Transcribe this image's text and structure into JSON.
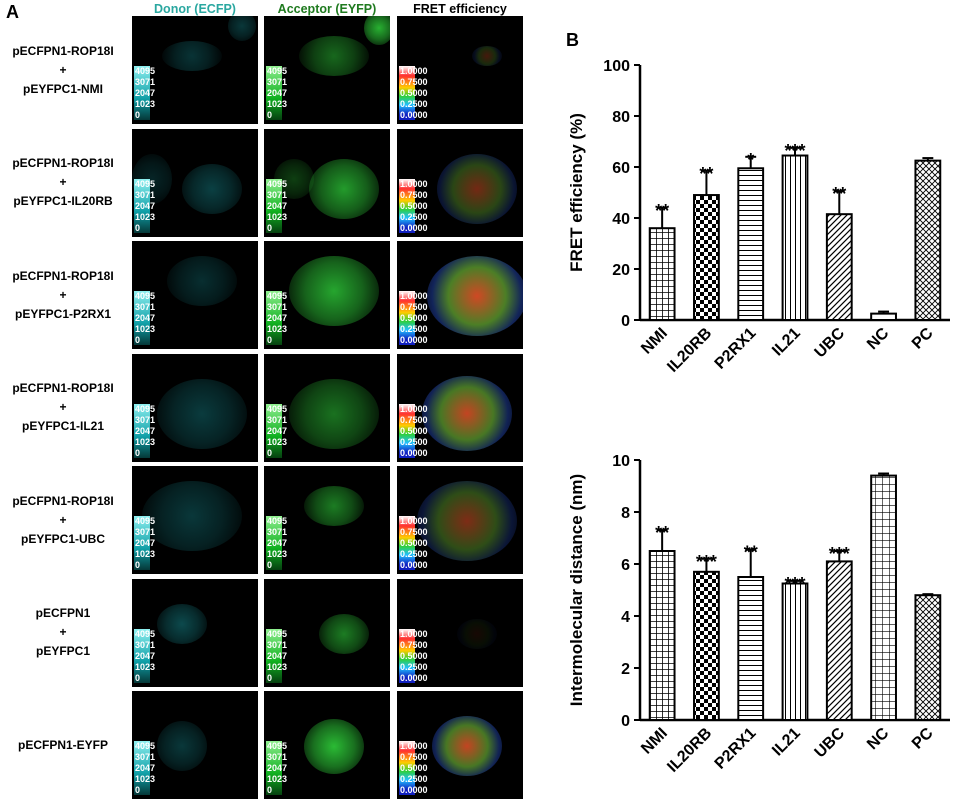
{
  "panel_a_letter": "A",
  "panel_b_letter": "B",
  "columns": [
    "Donor (ECFP)",
    "Acceptor (EYFP)",
    "FRET efficiency"
  ],
  "column_colors": [
    "#2aa7a0",
    "#1f7a1f",
    "#000000"
  ],
  "rows": [
    {
      "lines": [
        "pECFPN1-ROP18I",
        "+",
        "pEYFPC1-NMI"
      ]
    },
    {
      "lines": [
        "pECFPN1-ROP18I",
        "+",
        "pEYFPC1-IL20RB"
      ]
    },
    {
      "lines": [
        "pECFPN1-ROP18I",
        "+",
        "pEYFPC1-P2RX1"
      ]
    },
    {
      "lines": [
        "pECFPN1-ROP18I",
        "+",
        "pEYFPC1-IL21"
      ]
    },
    {
      "lines": [
        "pECFPN1-ROP18I",
        "+",
        "pEYFPC1-UBC"
      ]
    },
    {
      "lines": [
        "pECFPN1",
        "+",
        "pEYFPC1"
      ]
    },
    {
      "lines": [
        "pECFPN1-EYFP"
      ]
    }
  ],
  "intensity_scale": [
    "4095",
    "3071",
    "2047",
    "1023",
    "0"
  ],
  "fret_scale": [
    "1.0000",
    "0.7500",
    "0.5000",
    "0.2500",
    "0.0000"
  ],
  "chart_data": [
    {
      "type": "bar",
      "ylabel": "FRET efficiency (%)",
      "ylim": [
        0,
        100
      ],
      "yticks": [
        0,
        20,
        40,
        60,
        80,
        100
      ],
      "categories": [
        "NMI",
        "IL20RB",
        "P2RX1",
        "IL21",
        "UBC",
        "NC",
        "PC"
      ],
      "values": [
        36,
        49,
        59.5,
        64.5,
        41.5,
        2.5,
        62.5
      ],
      "errors": [
        8,
        9.5,
        4.5,
        3,
        9,
        0.8,
        1
      ],
      "annotations": [
        "**",
        "**",
        "*",
        "***",
        "**",
        "",
        ""
      ],
      "patterns": [
        "grid",
        "checker",
        "hlines",
        "vlines",
        "diag",
        "none",
        "crossdiag"
      ]
    },
    {
      "type": "bar",
      "ylabel": "Intermolecular distance (nm)",
      "ylim": [
        0,
        10
      ],
      "yticks": [
        0,
        2,
        4,
        6,
        8,
        10
      ],
      "categories": [
        "NMI",
        "IL20RB",
        "P2RX1",
        "IL21",
        "UBC",
        "NC",
        "PC"
      ],
      "values": [
        6.5,
        5.7,
        5.5,
        5.25,
        6.1,
        9.4,
        4.8
      ],
      "errors": [
        0.8,
        0.5,
        1.05,
        0.1,
        0.4,
        0.08,
        0.04
      ],
      "annotations": [
        "**",
        "***",
        "**",
        "***",
        "***",
        "",
        ""
      ],
      "patterns": [
        "grid",
        "checker",
        "hlines",
        "vlines",
        "diag",
        "gridbig",
        "crossdiag"
      ]
    }
  ]
}
